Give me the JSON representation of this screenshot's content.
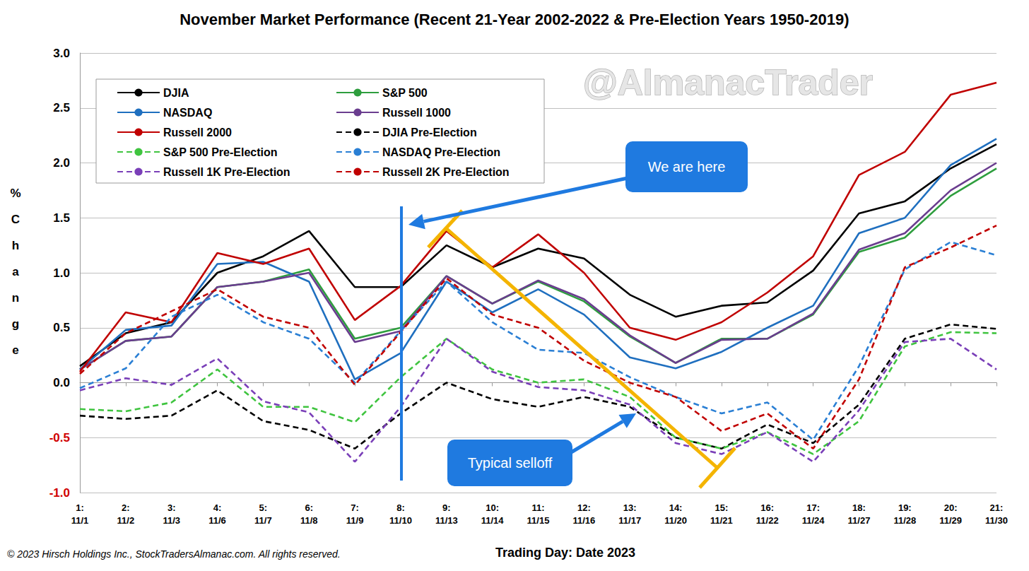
{
  "chart_data": {
    "type": "line",
    "title": "November Market Performance (Recent 21-Year 2002-2022 & Pre-Election Years 1950-2019)",
    "x_label": "Trading Day: Date 2023",
    "y_label": "% Change",
    "watermark": "@AlmanacTrader",
    "copyright": "© 2023 Hirsch Holdings Inc., StockTradersAlmanac.com. All rights reserved.",
    "annotations": [
      "We are here",
      "Typical selloff"
    ],
    "categories": [
      "1:\n11/1",
      "2:\n11/2",
      "3:\n11/3",
      "4:\n11/6",
      "5:\n11/7",
      "6:\n11/8",
      "7:\n11/9",
      "8:\n11/10",
      "9:\n11/13",
      "10:\n11/14",
      "11:\n11/15",
      "12:\n11/16",
      "13:\n11/17",
      "14:\n11/20",
      "15:\n11/21",
      "16:\n11/22",
      "17:\n11/24",
      "18:\n11/27",
      "19:\n11/28",
      "20:\n11/29",
      "21:\n11/30"
    ],
    "ylim": [
      -1.0,
      3.0
    ],
    "yticks": [
      {
        "value": -1.0,
        "label": "-1.0"
      },
      {
        "value": -0.5,
        "label": "-0.5"
      },
      {
        "value": 0,
        "label": "0.0"
      },
      {
        "value": 0.5,
        "label": "0.5"
      },
      {
        "value": 1.0,
        "label": "1.0"
      },
      {
        "value": 1.5,
        "label": "1.5"
      },
      {
        "value": 2.0,
        "label": "2.0"
      },
      {
        "value": 2.5,
        "label": "2.5"
      },
      {
        "value": 3.0,
        "label": "3.0"
      }
    ],
    "grid": true,
    "legend": "upper left",
    "marker": "none",
    "series": [
      {
        "name": "DJIA",
        "color": "#000000",
        "line_style": "solid",
        "values": [
          0.15,
          0.45,
          0.55,
          1.0,
          1.15,
          1.38,
          0.87,
          0.87,
          1.25,
          1.05,
          1.22,
          1.13,
          0.8,
          0.6,
          0.7,
          0.73,
          1.02,
          1.54,
          1.65,
          1.95,
          2.17
        ]
      },
      {
        "name": "S&P 500",
        "color": "#2e9e3e",
        "line_style": "solid",
        "values": [
          0.12,
          0.38,
          0.42,
          0.87,
          0.92,
          1.03,
          0.4,
          0.5,
          0.97,
          0.72,
          0.92,
          0.74,
          0.42,
          0.18,
          0.4,
          0.4,
          0.62,
          1.19,
          1.32,
          1.7,
          1.95
        ]
      },
      {
        "name": "NASDAQ",
        "color": "#1f6fbf",
        "line_style": "solid",
        "values": [
          0.12,
          0.48,
          0.52,
          1.08,
          1.1,
          0.92,
          0.03,
          0.27,
          0.92,
          0.64,
          0.85,
          0.62,
          0.23,
          0.13,
          0.28,
          0.5,
          0.7,
          1.36,
          1.5,
          1.98,
          2.22
        ]
      },
      {
        "name": "Russell 1000",
        "color": "#6a3d8f",
        "line_style": "solid",
        "values": [
          0.12,
          0.38,
          0.42,
          0.87,
          0.92,
          1.0,
          0.37,
          0.47,
          0.97,
          0.72,
          0.93,
          0.76,
          0.43,
          0.18,
          0.39,
          0.4,
          0.63,
          1.21,
          1.36,
          1.75,
          2.0
        ]
      },
      {
        "name": "Russell 2000",
        "color": "#c00000",
        "line_style": "solid",
        "values": [
          0.1,
          0.64,
          0.55,
          1.18,
          1.08,
          1.22,
          0.57,
          0.88,
          1.38,
          1.05,
          1.35,
          1.0,
          0.5,
          0.39,
          0.55,
          0.82,
          1.15,
          1.89,
          2.1,
          2.62,
          2.73
        ]
      },
      {
        "name": "DJIA Pre-Election",
        "color": "#000000",
        "line_style": "dashed",
        "values": [
          -0.3,
          -0.33,
          -0.3,
          -0.07,
          -0.35,
          -0.43,
          -0.6,
          -0.28,
          0.0,
          -0.15,
          -0.22,
          -0.13,
          -0.22,
          -0.5,
          -0.6,
          -0.38,
          -0.55,
          -0.2,
          0.4,
          0.53,
          0.49
        ]
      },
      {
        "name": "S&P 500 Pre-Election",
        "color": "#3fc43f",
        "line_style": "dashed",
        "values": [
          -0.24,
          -0.26,
          -0.18,
          0.12,
          -0.22,
          -0.22,
          -0.36,
          0.05,
          0.4,
          0.12,
          0.0,
          0.03,
          -0.13,
          -0.5,
          -0.6,
          -0.45,
          -0.65,
          -0.35,
          0.33,
          0.46,
          0.45
        ]
      },
      {
        "name": "NASDAQ Pre-Election",
        "color": "#2a7fd4",
        "line_style": "dashed",
        "values": [
          -0.05,
          0.13,
          0.6,
          0.8,
          0.55,
          0.4,
          0.0,
          0.47,
          0.92,
          0.55,
          0.3,
          0.27,
          0.05,
          -0.13,
          -0.28,
          -0.18,
          -0.52,
          0.15,
          1.03,
          1.28,
          1.16
        ]
      },
      {
        "name": "Russell 1K Pre-Election",
        "color": "#7a3fb8",
        "line_style": "dashed",
        "values": [
          -0.07,
          0.04,
          -0.02,
          0.22,
          -0.17,
          -0.27,
          -0.72,
          -0.22,
          0.4,
          0.1,
          -0.04,
          -0.07,
          -0.2,
          -0.55,
          -0.65,
          -0.45,
          -0.72,
          -0.25,
          0.37,
          0.4,
          0.12
        ]
      },
      {
        "name": "Russell 2K Pre-Election",
        "color": "#c00000",
        "line_style": "dashed",
        "values": [
          0.08,
          0.45,
          0.65,
          0.85,
          0.6,
          0.5,
          -0.02,
          0.46,
          0.95,
          0.62,
          0.5,
          0.2,
          0.0,
          -0.13,
          -0.44,
          -0.28,
          -0.6,
          0.03,
          1.05,
          1.23,
          1.43
        ]
      }
    ]
  }
}
